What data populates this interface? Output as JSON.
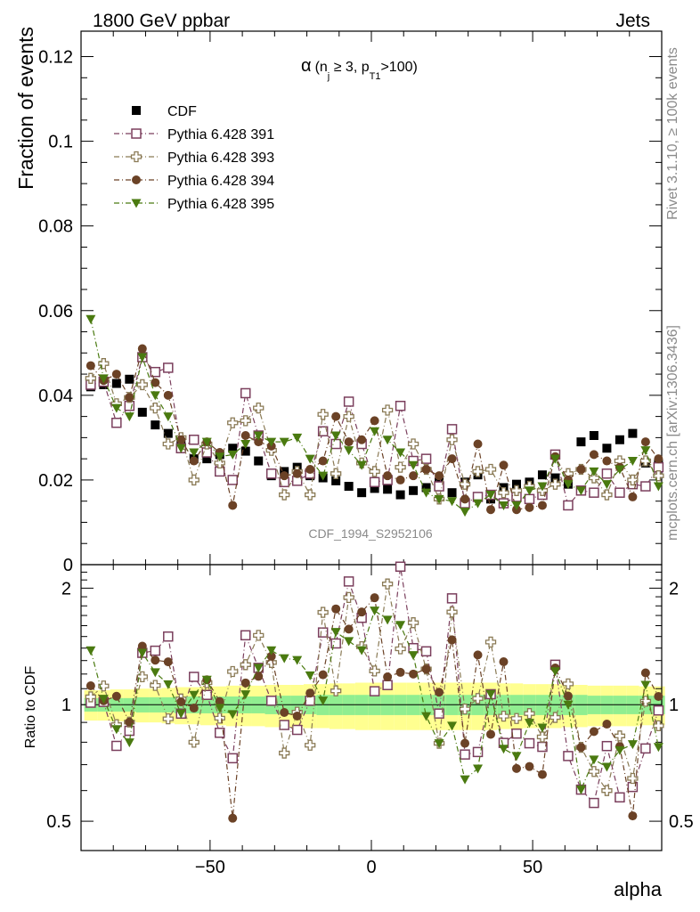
{
  "header": {
    "left": "1800 GeV ppbar",
    "right": "Jets"
  },
  "side": {
    "rivet": "Rivet 3.1.10, ≥ 100k events",
    "mcplots": "mcplots.cern.ch [arXiv:1306.3436]"
  },
  "colors": {
    "cdf": "#000000",
    "p391": "#7b3f5d",
    "p393": "#8a7a55",
    "p394": "#6b4226",
    "p395": "#4a7a10",
    "band_inner": "#90ee90",
    "band_outer": "#ffff90"
  },
  "chart_data": {
    "type": "scatter",
    "title": "α (n_j ≥ 3, p_T1 >100)",
    "title_parts": {
      "alpha": "α",
      "open": "(n",
      "nsub": "j",
      "ge": " ≥ 3, p",
      "psub": "T1",
      "close": ">100)"
    },
    "analysis_label": "CDF_1994_S2952106",
    "xlabel": "alpha",
    "ylabel_top": "Fraction of events",
    "ylabel_bottom": "Ratio to CDF",
    "xlim": [
      -90,
      90
    ],
    "ylim_top": [
      0,
      0.126
    ],
    "ylim_bottom": [
      0.42,
      2.3
    ],
    "bottom_scale": "log",
    "x_ticks": [
      "−50",
      "0",
      "50"
    ],
    "y_ticks_top": [
      "0",
      "0.02",
      "0.04",
      "0.06",
      "0.08",
      "0.1",
      "0.12"
    ],
    "y_ticks_bottom": [
      "0.5",
      "1",
      "2"
    ],
    "legend_position": "top-left",
    "x": [
      -87,
      -83,
      -79,
      -75,
      -71,
      -67,
      -63,
      -59,
      -55,
      -51,
      -47,
      -43,
      -39,
      -35,
      -31,
      -27,
      -23,
      -19,
      -15,
      -11,
      -7,
      -3,
      1,
      5,
      9,
      13,
      17,
      21,
      25,
      29,
      33,
      37,
      41,
      45,
      49,
      53,
      57,
      61,
      65,
      69,
      73,
      77,
      81,
      85,
      89
    ],
    "series": [
      {
        "name": "CDF",
        "marker": "filled-square",
        "values": [
          0.042,
          0.0425,
          0.0428,
          0.0438,
          0.036,
          0.033,
          0.031,
          0.029,
          0.025,
          0.025,
          0.026,
          0.0275,
          0.0268,
          0.0245,
          0.021,
          0.022,
          0.023,
          0.021,
          0.0205,
          0.0198,
          0.0185,
          0.017,
          0.018,
          0.0178,
          0.0165,
          0.0175,
          0.0182,
          0.0195,
          0.017,
          0.0195,
          0.0212,
          0.0155,
          0.0182,
          0.019,
          0.0195,
          0.0212,
          0.0205,
          0.019,
          0.029,
          0.0305,
          0.0275,
          0.0295,
          0.031,
          0.024,
          0.0238
        ]
      },
      {
        "name": "Pythia 6.428 391",
        "marker": "open-square",
        "values": [
          0.0425,
          0.0432,
          0.0335,
          0.0375,
          0.049,
          0.0455,
          0.0465,
          0.0275,
          0.0295,
          0.0265,
          0.022,
          0.02,
          0.0405,
          0.0305,
          0.0215,
          0.0195,
          0.0198,
          0.0215,
          0.0315,
          0.0285,
          0.0385,
          0.0285,
          0.0195,
          0.02,
          0.0375,
          0.0245,
          0.025,
          0.0185,
          0.032,
          0.0145,
          0.016,
          0.0165,
          0.0145,
          0.016,
          0.0155,
          0.0165,
          0.026,
          0.014,
          0.0175,
          0.017,
          0.0215,
          0.017,
          0.019,
          0.0185,
          0.023
        ]
      },
      {
        "name": "Pythia 6.428 393",
        "marker": "open-cross",
        "values": [
          0.044,
          0.0475,
          0.038,
          0.0395,
          0.0425,
          0.037,
          0.0285,
          0.03,
          0.02,
          0.0285,
          0.024,
          0.0335,
          0.034,
          0.037,
          0.027,
          0.0165,
          0.022,
          0.0165,
          0.0355,
          0.0215,
          0.035,
          0.024,
          0.022,
          0.0365,
          0.023,
          0.0285,
          0.0225,
          0.0155,
          0.0295,
          0.019,
          0.022,
          0.0225,
          0.017,
          0.0175,
          0.0185,
          0.0175,
          0.019,
          0.0215,
          0.0225,
          0.0205,
          0.0165,
          0.0245,
          0.02,
          0.0245,
          0.021
        ]
      },
      {
        "name": "Pythia 6.428 394",
        "marker": "filled-circle",
        "values": [
          0.047,
          0.0435,
          0.045,
          0.0395,
          0.051,
          0.043,
          0.04,
          0.0295,
          0.0245,
          0.029,
          0.0265,
          0.014,
          0.0305,
          0.029,
          0.028,
          0.021,
          0.0215,
          0.0225,
          0.0245,
          0.035,
          0.029,
          0.0295,
          0.034,
          0.021,
          0.02,
          0.021,
          0.0225,
          0.021,
          0.025,
          0.0155,
          0.0285,
          0.013,
          0.0235,
          0.013,
          0.0135,
          0.014,
          0.0255,
          0.02,
          0.0225,
          0.026,
          0.0245,
          0.023,
          0.016,
          0.029,
          0.025
        ]
      },
      {
        "name": "Pythia 6.428 395",
        "marker": "filled-triangle-down",
        "values": [
          0.058,
          0.044,
          0.037,
          0.035,
          0.049,
          0.04,
          0.035,
          0.0275,
          0.0265,
          0.029,
          0.0255,
          0.026,
          0.0285,
          0.0305,
          0.029,
          0.029,
          0.03,
          0.025,
          0.021,
          0.0305,
          0.027,
          0.0235,
          0.0315,
          0.0295,
          0.0265,
          0.0235,
          0.017,
          0.0155,
          0.015,
          0.0125,
          0.0145,
          0.0165,
          0.014,
          0.014,
          0.0175,
          0.0185,
          0.025,
          0.019,
          0.0175,
          0.022,
          0.019,
          0.0225,
          0.0245,
          0.027,
          0.0185
        ]
      }
    ],
    "uncertainty_bands": {
      "reference": "CDF",
      "inner_rel": [
        0.04,
        0.04,
        0.04,
        0.04,
        0.045,
        0.045,
        0.045,
        0.05,
        0.05,
        0.05,
        0.05,
        0.05,
        0.05,
        0.05,
        0.055,
        0.055,
        0.055,
        0.055,
        0.06,
        0.06,
        0.06,
        0.06,
        0.06,
        0.06,
        0.06,
        0.06,
        0.06,
        0.06,
        0.06,
        0.06,
        0.06,
        0.06,
        0.06,
        0.06,
        0.06,
        0.06,
        0.06,
        0.06,
        0.06,
        0.055,
        0.055,
        0.055,
        0.055,
        0.055,
        0.055
      ],
      "outer_rel": [
        0.09,
        0.09,
        0.095,
        0.095,
        0.1,
        0.1,
        0.105,
        0.11,
        0.11,
        0.115,
        0.115,
        0.12,
        0.12,
        0.12,
        0.125,
        0.125,
        0.125,
        0.13,
        0.13,
        0.135,
        0.135,
        0.14,
        0.14,
        0.14,
        0.14,
        0.14,
        0.14,
        0.14,
        0.14,
        0.14,
        0.14,
        0.14,
        0.135,
        0.135,
        0.13,
        0.13,
        0.13,
        0.125,
        0.125,
        0.12,
        0.12,
        0.12,
        0.12,
        0.115,
        0.115
      ]
    }
  }
}
